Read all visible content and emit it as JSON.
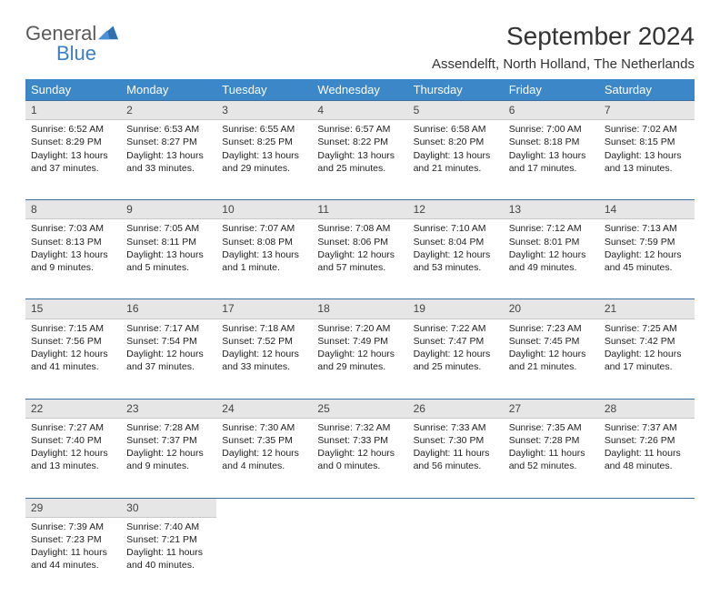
{
  "logo": {
    "word1": "General",
    "word2": "Blue"
  },
  "title": "September 2024",
  "location": "Assendelft, North Holland, The Netherlands",
  "colors": {
    "header_bg": "#3b87c8",
    "header_text": "#ffffff",
    "daynum_bg": "#e6e6e6",
    "daynum_border_top": "#3b6fa0",
    "logo_gray": "#5a5a5a",
    "logo_blue": "#3b7fc4"
  },
  "weekdays": [
    "Sunday",
    "Monday",
    "Tuesday",
    "Wednesday",
    "Thursday",
    "Friday",
    "Saturday"
  ],
  "weeks": [
    [
      {
        "day": "1",
        "sunrise": "6:52 AM",
        "sunset": "8:29 PM",
        "daylight": "13 hours and 37 minutes."
      },
      {
        "day": "2",
        "sunrise": "6:53 AM",
        "sunset": "8:27 PM",
        "daylight": "13 hours and 33 minutes."
      },
      {
        "day": "3",
        "sunrise": "6:55 AM",
        "sunset": "8:25 PM",
        "daylight": "13 hours and 29 minutes."
      },
      {
        "day": "4",
        "sunrise": "6:57 AM",
        "sunset": "8:22 PM",
        "daylight": "13 hours and 25 minutes."
      },
      {
        "day": "5",
        "sunrise": "6:58 AM",
        "sunset": "8:20 PM",
        "daylight": "13 hours and 21 minutes."
      },
      {
        "day": "6",
        "sunrise": "7:00 AM",
        "sunset": "8:18 PM",
        "daylight": "13 hours and 17 minutes."
      },
      {
        "day": "7",
        "sunrise": "7:02 AM",
        "sunset": "8:15 PM",
        "daylight": "13 hours and 13 minutes."
      }
    ],
    [
      {
        "day": "8",
        "sunrise": "7:03 AM",
        "sunset": "8:13 PM",
        "daylight": "13 hours and 9 minutes."
      },
      {
        "day": "9",
        "sunrise": "7:05 AM",
        "sunset": "8:11 PM",
        "daylight": "13 hours and 5 minutes."
      },
      {
        "day": "10",
        "sunrise": "7:07 AM",
        "sunset": "8:08 PM",
        "daylight": "13 hours and 1 minute."
      },
      {
        "day": "11",
        "sunrise": "7:08 AM",
        "sunset": "8:06 PM",
        "daylight": "12 hours and 57 minutes."
      },
      {
        "day": "12",
        "sunrise": "7:10 AM",
        "sunset": "8:04 PM",
        "daylight": "12 hours and 53 minutes."
      },
      {
        "day": "13",
        "sunrise": "7:12 AM",
        "sunset": "8:01 PM",
        "daylight": "12 hours and 49 minutes."
      },
      {
        "day": "14",
        "sunrise": "7:13 AM",
        "sunset": "7:59 PM",
        "daylight": "12 hours and 45 minutes."
      }
    ],
    [
      {
        "day": "15",
        "sunrise": "7:15 AM",
        "sunset": "7:56 PM",
        "daylight": "12 hours and 41 minutes."
      },
      {
        "day": "16",
        "sunrise": "7:17 AM",
        "sunset": "7:54 PM",
        "daylight": "12 hours and 37 minutes."
      },
      {
        "day": "17",
        "sunrise": "7:18 AM",
        "sunset": "7:52 PM",
        "daylight": "12 hours and 33 minutes."
      },
      {
        "day": "18",
        "sunrise": "7:20 AM",
        "sunset": "7:49 PM",
        "daylight": "12 hours and 29 minutes."
      },
      {
        "day": "19",
        "sunrise": "7:22 AM",
        "sunset": "7:47 PM",
        "daylight": "12 hours and 25 minutes."
      },
      {
        "day": "20",
        "sunrise": "7:23 AM",
        "sunset": "7:45 PM",
        "daylight": "12 hours and 21 minutes."
      },
      {
        "day": "21",
        "sunrise": "7:25 AM",
        "sunset": "7:42 PM",
        "daylight": "12 hours and 17 minutes."
      }
    ],
    [
      {
        "day": "22",
        "sunrise": "7:27 AM",
        "sunset": "7:40 PM",
        "daylight": "12 hours and 13 minutes."
      },
      {
        "day": "23",
        "sunrise": "7:28 AM",
        "sunset": "7:37 PM",
        "daylight": "12 hours and 9 minutes."
      },
      {
        "day": "24",
        "sunrise": "7:30 AM",
        "sunset": "7:35 PM",
        "daylight": "12 hours and 4 minutes."
      },
      {
        "day": "25",
        "sunrise": "7:32 AM",
        "sunset": "7:33 PM",
        "daylight": "12 hours and 0 minutes."
      },
      {
        "day": "26",
        "sunrise": "7:33 AM",
        "sunset": "7:30 PM",
        "daylight": "11 hours and 56 minutes."
      },
      {
        "day": "27",
        "sunrise": "7:35 AM",
        "sunset": "7:28 PM",
        "daylight": "11 hours and 52 minutes."
      },
      {
        "day": "28",
        "sunrise": "7:37 AM",
        "sunset": "7:26 PM",
        "daylight": "11 hours and 48 minutes."
      }
    ],
    [
      {
        "day": "29",
        "sunrise": "7:39 AM",
        "sunset": "7:23 PM",
        "daylight": "11 hours and 44 minutes."
      },
      {
        "day": "30",
        "sunrise": "7:40 AM",
        "sunset": "7:21 PM",
        "daylight": "11 hours and 40 minutes."
      },
      null,
      null,
      null,
      null,
      null
    ]
  ],
  "labels": {
    "sunrise": "Sunrise: ",
    "sunset": "Sunset: ",
    "daylight": "Daylight: "
  }
}
